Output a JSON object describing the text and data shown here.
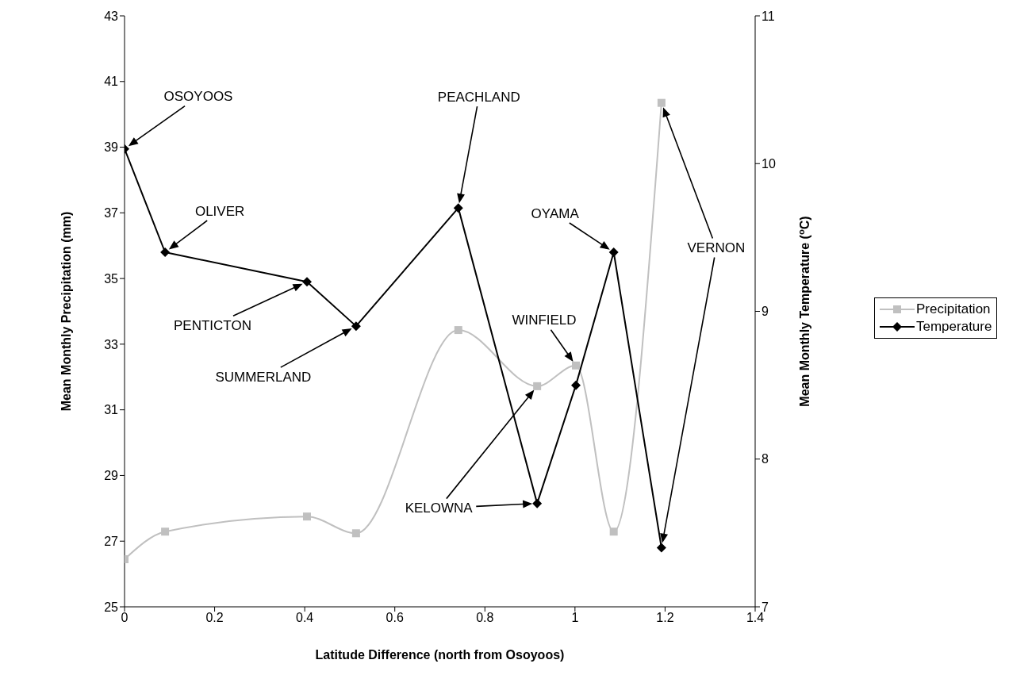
{
  "chart_data": {
    "type": "line",
    "xlabel": "Latitude Difference (north from Osoyoos)",
    "ylabel": "Mean Monthly Precipitation (mm)",
    "y2label": "Mean Monthly Temperature ($^{o}$C)",
    "x": [
      0,
      0.09,
      0.405,
      0.514,
      0.741,
      0.916,
      1.002,
      1.086,
      1.192
    ],
    "series": [
      {
        "name": "Precipitation",
        "color": "#c0c0c0",
        "marker": "square",
        "values": [
          26.45,
          27.29,
          27.75,
          27.24,
          33.43,
          31.72,
          32.35,
          27.29,
          40.35
        ]
      },
      {
        "name": "Temperature",
        "color": "#000000",
        "marker": "diamond",
        "axis": "y2",
        "values": [
          10.1,
          9.4,
          9.2,
          8.9,
          9.7,
          7.7,
          8.5,
          9.4,
          7.4
        ]
      }
    ],
    "xlim": [
      0,
      1.4
    ],
    "xticks": [
      0,
      0.2,
      0.4,
      0.6,
      0.8,
      1,
      1.2,
      1.4
    ],
    "ylim": [
      25,
      43
    ],
    "yticks": [
      25,
      27,
      29,
      31,
      33,
      35,
      37,
      39,
      41,
      43
    ],
    "y2lim": [
      7,
      11
    ],
    "y2ticks": [
      7,
      8,
      9,
      10,
      11
    ],
    "legend": "right",
    "annotations": [
      "OSOYOOS",
      "OLIVER",
      "PENTICTON",
      "SUMMERLAND",
      "PEACHLAND",
      "KELOWNA",
      {
        "text": "WINFIELD",
        "x": 1.002,
        "y": 32.35
      },
      "OYAMA",
      "VERNON"
    ]
  }
}
